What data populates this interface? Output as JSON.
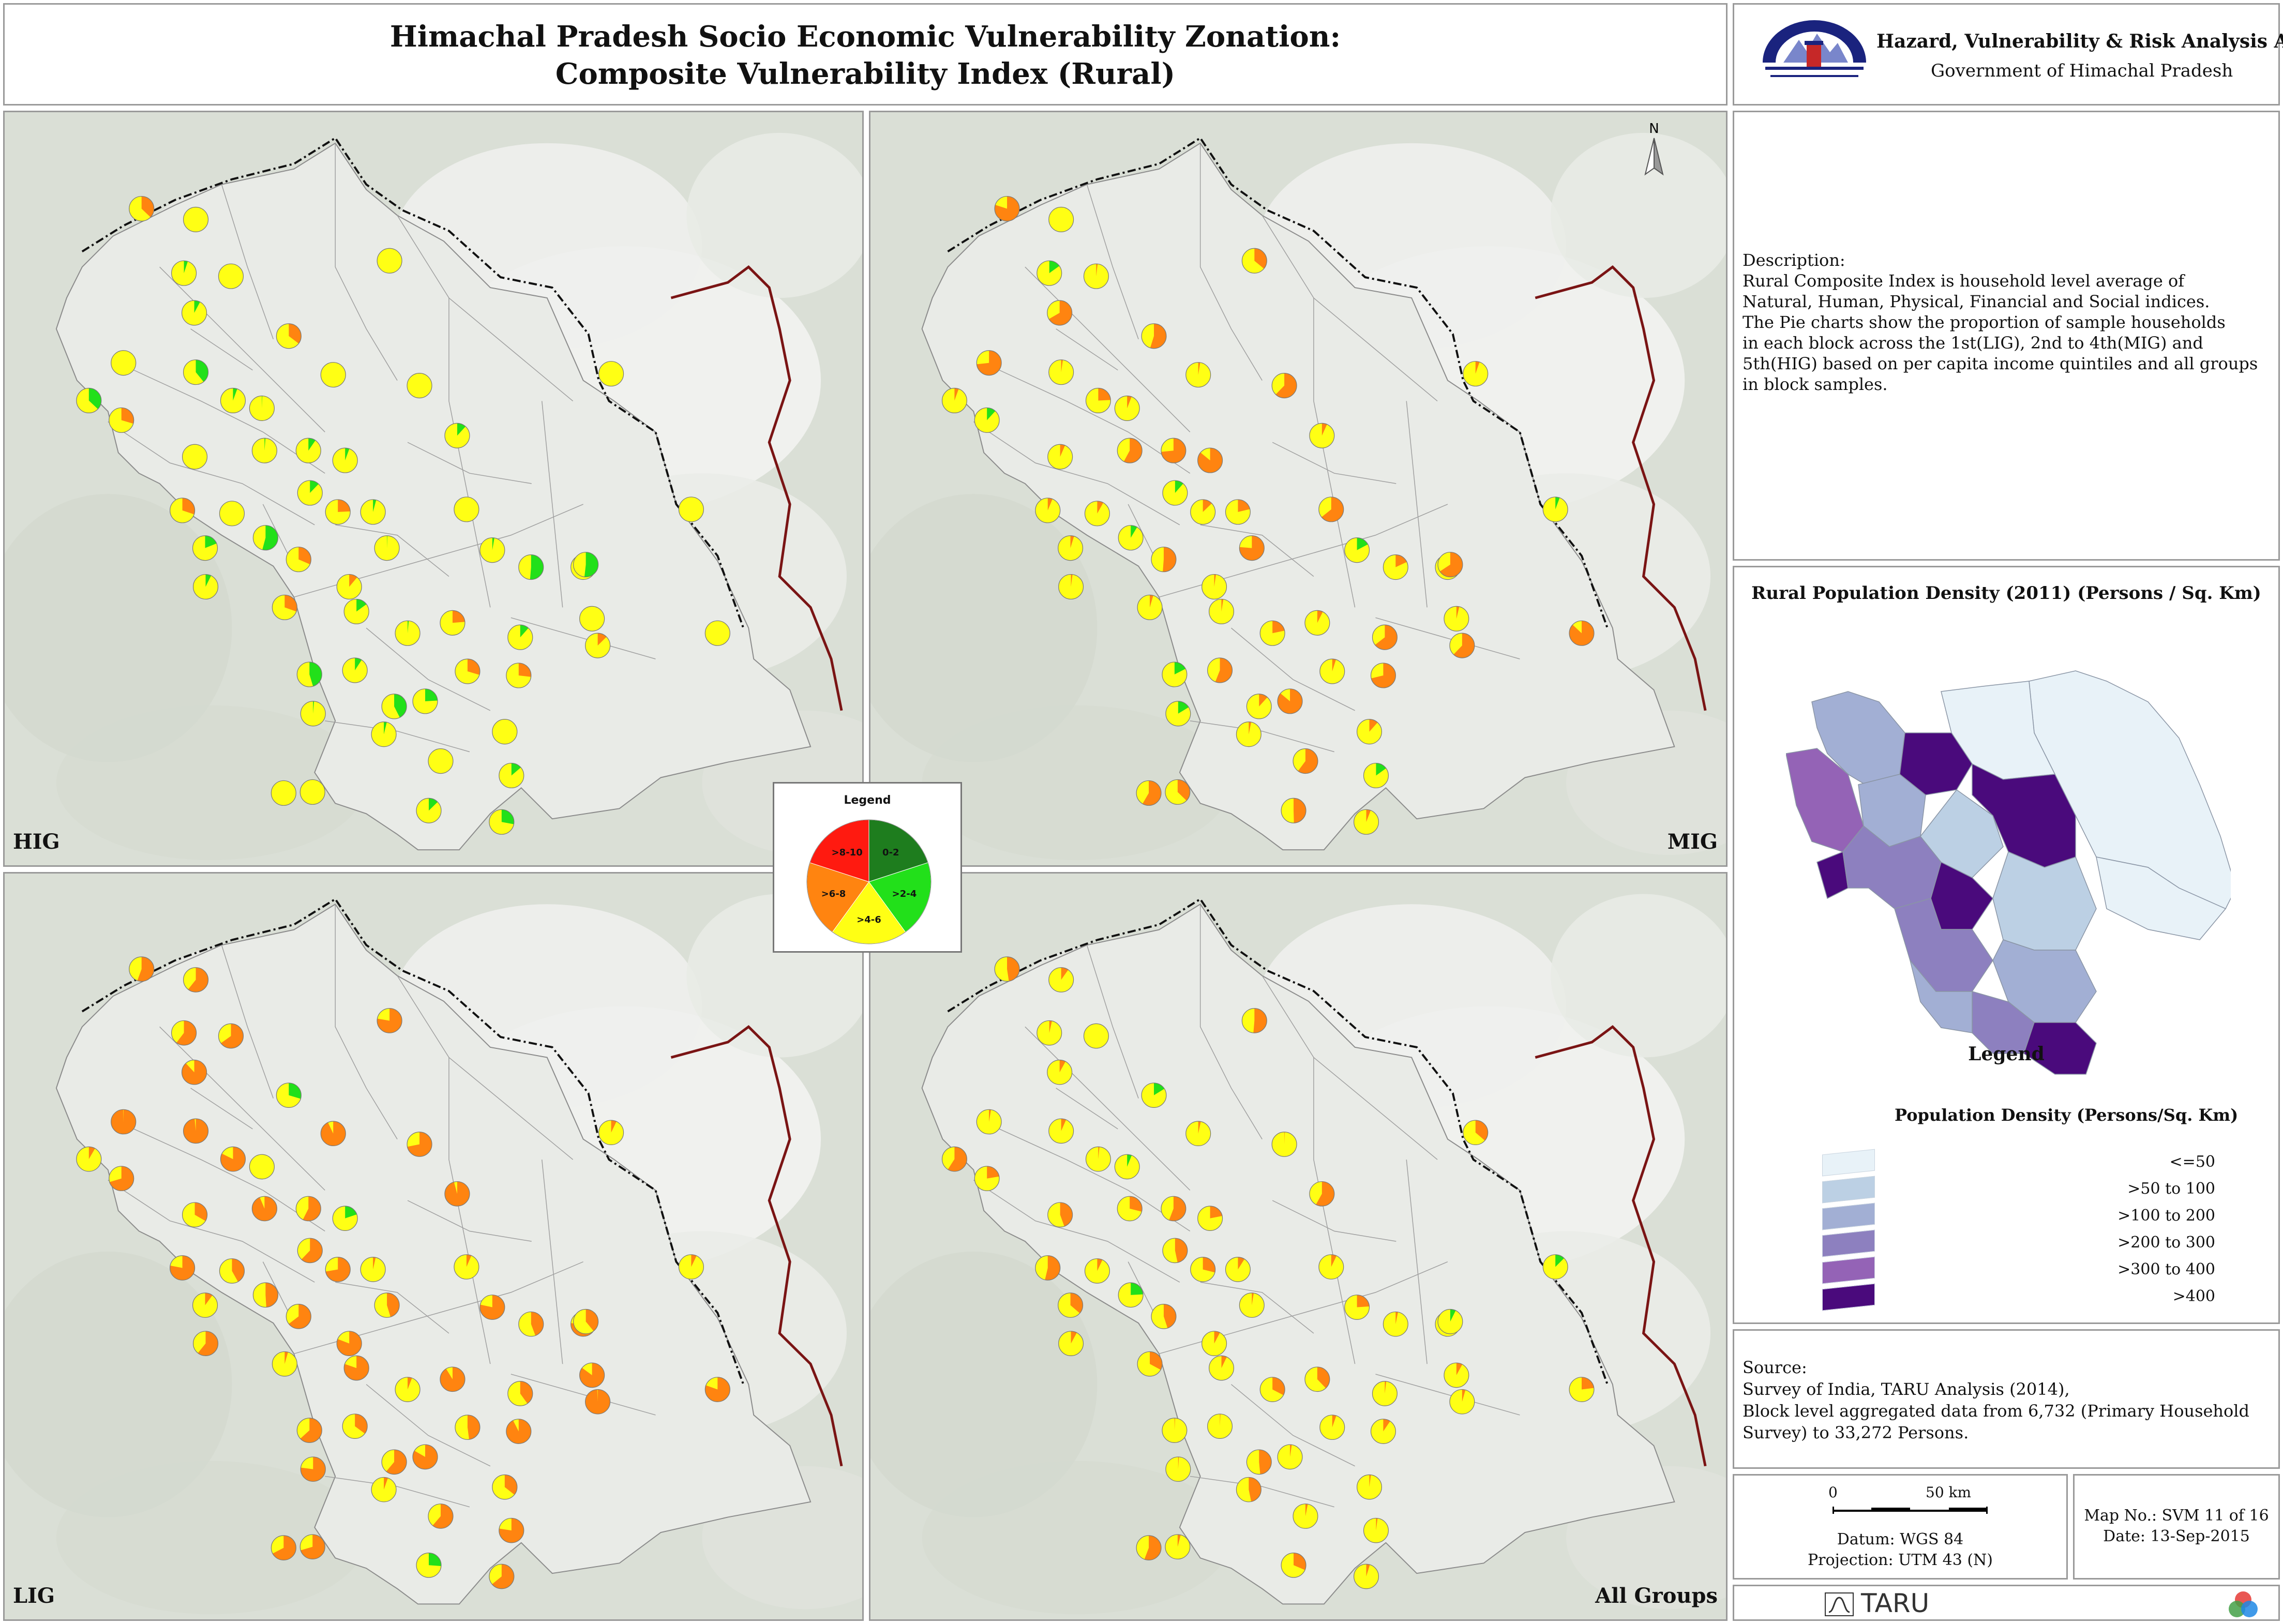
{
  "title": {
    "line1": "Himachal Pradesh Socio Economic Vulnerability Zonation:",
    "line2": "Composite Vulnerability Index (Rural)"
  },
  "org": {
    "line1": "Hazard, Vulnerability & Risk Analysis Atlas",
    "line2": "Government of Himachal Pradesh",
    "emblem_icon": "himachal-emblem-icon"
  },
  "north_arrow": "N",
  "panels": [
    {
      "label": "HIG",
      "palette": "high"
    },
    {
      "label": "MIG",
      "palette": "mid"
    },
    {
      "label": "LIG",
      "palette": "low"
    },
    {
      "label": "All Groups",
      "palette": "all"
    }
  ],
  "pie_legend": {
    "title": "Legend",
    "classes": [
      {
        "label": "0-2",
        "color": "#1e7d1e"
      },
      {
        "label": ">2-4",
        "color": "#22e01a"
      },
      {
        "label": ">4-6",
        "color": "#ffff14"
      },
      {
        "label": ">6-8",
        "color": "#ff8410"
      },
      {
        "label": ">8-10",
        "color": "#ff1a10"
      }
    ]
  },
  "description": {
    "heading": "Description:",
    "lines": [
      " Rural Composite Index is household level average of",
      " Natural, Human, Physical, Financial and Social indices.",
      " The Pie charts show the proportion of sample households",
      " in each block across the 1st(LIG), 2nd to 4th(MIG) and",
      " 5th(HIG) based on per capita income quintiles and all groups",
      "in block samples."
    ]
  },
  "density": {
    "title": "Rural Population Density (2011) (Persons / Sq. Km)",
    "legend_label": "Legend",
    "subtitle": "Population Density (Persons/Sq. Km)",
    "classes": [
      {
        "label": "<=50",
        "color": "#e8f2f8"
      },
      {
        "label": ">50 to 100",
        "color": "#bcd0e4"
      },
      {
        "label": ">100 to 200",
        "color": "#a2afd4"
      },
      {
        "label": ">200 to 300",
        "color": "#8d80bf"
      },
      {
        "label": ">300 to 400",
        "color": "#9463b6"
      },
      {
        "label": ">400",
        "color": "#4a0a7c"
      }
    ]
  },
  "source": {
    "heading": "Source:",
    "lines": [
      " Survey of India, TARU Analysis (2014),",
      " Block level aggregated data from 6,732 (Primary Household",
      "Survey) to 33,272 Persons."
    ]
  },
  "scale": {
    "zero": "0",
    "fifty": "50 km",
    "datum": "Datum: WGS 84",
    "projection": "Projection: UTM 43 (N)"
  },
  "map_info": {
    "map_no": "Map No.: SVM 11 of 16",
    "date": "Date: 13-Sep-2015"
  },
  "footer": {
    "taru": "TARU",
    "logo_icon": "taru-logo-icon",
    "rgb_icon": "rgb-circles-icon"
  }
}
